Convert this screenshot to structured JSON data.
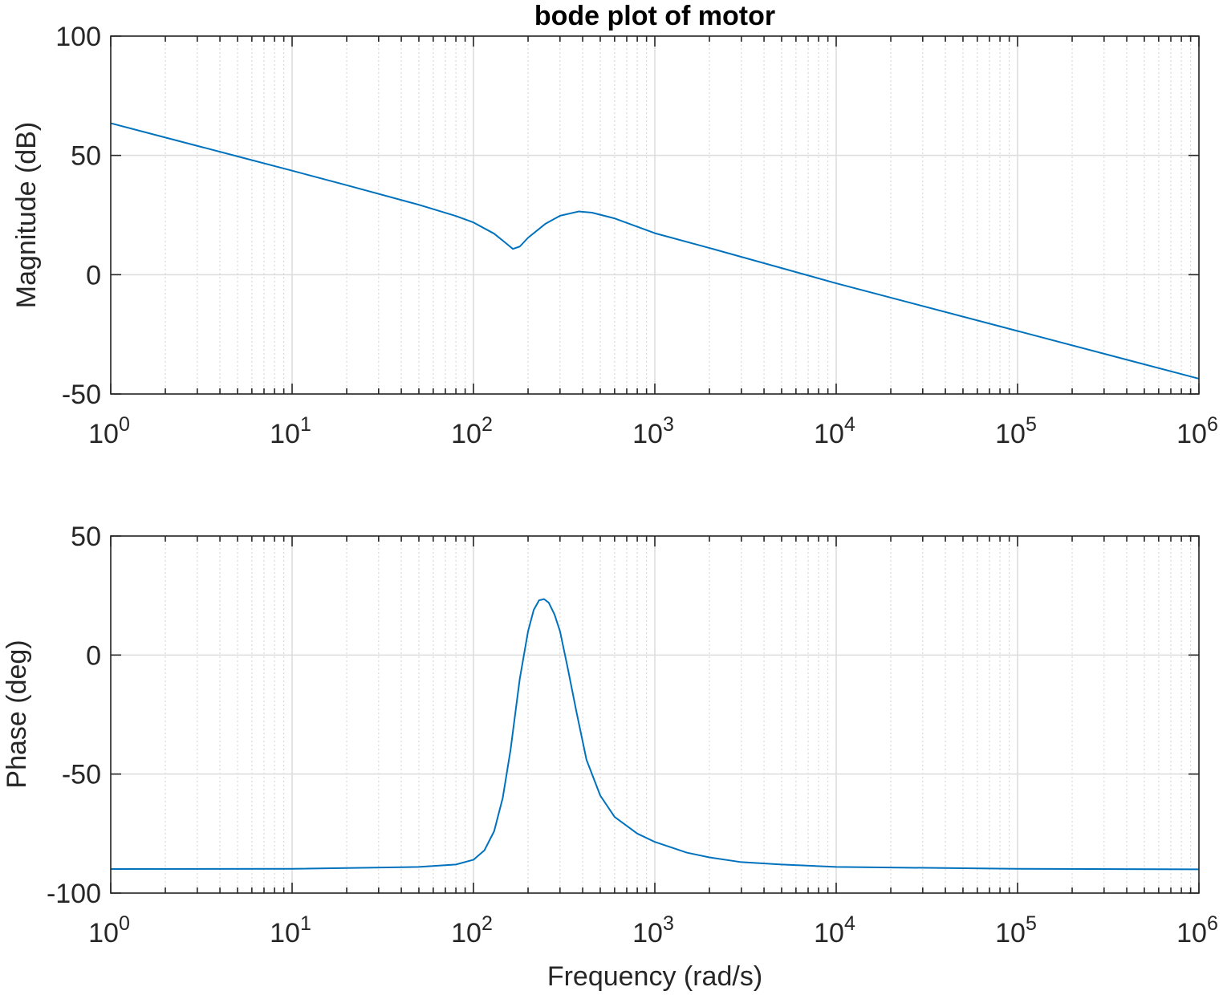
{
  "chart_data": [
    {
      "type": "line",
      "title": "bode plot of motor",
      "xlabel": "",
      "ylabel": "Magnitude (dB)",
      "xscale": "log",
      "xlim": [
        1,
        1000000
      ],
      "ylim": [
        -50,
        100
      ],
      "x_ticks": [
        1,
        10,
        100,
        1000,
        10000,
        100000,
        1000000
      ],
      "x_tick_labels": [
        {
          "base": "10",
          "exp": "0"
        },
        {
          "base": "10",
          "exp": "1"
        },
        {
          "base": "10",
          "exp": "2"
        },
        {
          "base": "10",
          "exp": "3"
        },
        {
          "base": "10",
          "exp": "4"
        },
        {
          "base": "10",
          "exp": "5"
        },
        {
          "base": "10",
          "exp": "6"
        }
      ],
      "y_ticks": [
        -50,
        0,
        50,
        100
      ],
      "y_tick_labels": [
        "-50",
        "0",
        "50",
        "100"
      ],
      "grid": true,
      "series": [
        {
          "color": "#0072BD",
          "x": [
            1,
            2,
            5,
            10,
            20,
            50,
            80,
            100,
            130,
            150,
            165,
            180,
            200,
            250,
            300,
            380,
            450,
            600,
            1000,
            2000,
            10000,
            100000,
            1000000
          ],
          "y": [
            63.5,
            57.5,
            49.6,
            43.6,
            37.5,
            29.3,
            24.6,
            21.9,
            17.2,
            13.4,
            10.8,
            11.8,
            15.5,
            21.4,
            24.7,
            26.5,
            26.0,
            23.6,
            17.4,
            11.2,
            -3.6,
            -23.6,
            -43.6
          ]
        }
      ]
    },
    {
      "type": "line",
      "title": "",
      "xlabel": "Frequency (rad/s)",
      "ylabel": "Phase (deg)",
      "xscale": "log",
      "xlim": [
        1,
        1000000
      ],
      "ylim": [
        -100,
        50
      ],
      "x_ticks": [
        1,
        10,
        100,
        1000,
        10000,
        100000,
        1000000
      ],
      "x_tick_labels": [
        {
          "base": "10",
          "exp": "0"
        },
        {
          "base": "10",
          "exp": "1"
        },
        {
          "base": "10",
          "exp": "2"
        },
        {
          "base": "10",
          "exp": "3"
        },
        {
          "base": "10",
          "exp": "4"
        },
        {
          "base": "10",
          "exp": "5"
        },
        {
          "base": "10",
          "exp": "6"
        }
      ],
      "y_ticks": [
        -100,
        -50,
        0,
        50
      ],
      "y_tick_labels": [
        "-100",
        "-50",
        "0",
        "50"
      ],
      "grid": true,
      "series": [
        {
          "color": "#0072BD",
          "x": [
            1,
            10,
            50,
            80,
            100,
            115,
            130,
            145,
            160,
            180,
            200,
            215,
            230,
            245,
            260,
            280,
            300,
            330,
            370,
            420,
            500,
            600,
            800,
            1000,
            1500,
            2000,
            3000,
            5000,
            10000,
            100000,
            1000000
          ],
          "y": [
            -89.9,
            -89.8,
            -89.0,
            -88.0,
            -86.0,
            -82.0,
            -74.0,
            -60.0,
            -40.0,
            -10.0,
            10.0,
            19.0,
            23.0,
            23.5,
            22.0,
            17.0,
            10.0,
            -5.0,
            -24.0,
            -44.0,
            -59.0,
            -68.0,
            -75.0,
            -78.5,
            -83.0,
            -85.0,
            -87.0,
            -88.0,
            -89.0,
            -89.8,
            -90.0
          ]
        }
      ]
    }
  ]
}
